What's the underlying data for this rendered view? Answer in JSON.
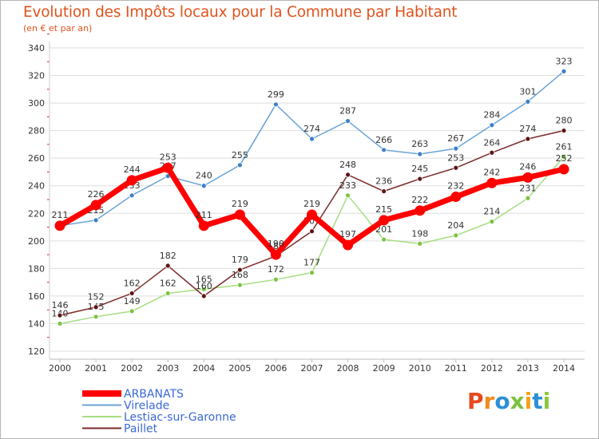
{
  "title": "Evolution des Impôts locaux pour la Commune par Habitant",
  "subtitle": "(en € et par an)",
  "logo": {
    "text": "Proxiti",
    "letters": [
      "P",
      "r",
      "o",
      "x",
      "i",
      "t",
      "i"
    ],
    "colors": [
      "#e8481c",
      "#f08b1d",
      "#2a8fd6",
      "#7cc242",
      "#f5a21c",
      "#2a8fd6",
      "#8dc63f"
    ]
  },
  "chart_data": {
    "type": "line",
    "categories": [
      "2000",
      "2001",
      "2002",
      "2003",
      "2004",
      "2005",
      "2006",
      "2007",
      "2008",
      "2009",
      "2010",
      "2011",
      "2012",
      "2013",
      "2014"
    ],
    "ylim": [
      120,
      340
    ],
    "yticks": [
      120,
      140,
      160,
      180,
      200,
      220,
      240,
      260,
      280,
      300,
      320,
      340
    ],
    "xlabel": "",
    "ylabel": "",
    "series": [
      {
        "name": "Virelade",
        "color": "#6aa3d6",
        "marker": "#3c7fc8",
        "values": [
          211,
          215,
          233,
          247,
          240,
          255,
          299,
          274,
          287,
          266,
          263,
          267,
          284,
          301,
          323
        ],
        "labels": [
          "",
          "215",
          "233",
          "247",
          "240",
          "255",
          "299",
          "274",
          "287",
          "266",
          "263",
          "267",
          "284",
          "301",
          "323"
        ]
      },
      {
        "name": "Lestiac-sur-Garonne",
        "color": "#a6dd80",
        "marker": "#7cc242",
        "values": [
          140,
          145,
          149,
          162,
          165,
          168,
          172,
          177,
          233,
          201,
          198,
          204,
          214,
          231,
          261
        ],
        "labels": [
          "140",
          "145",
          "149",
          "162",
          "165",
          "168",
          "172",
          "177",
          "233",
          "201",
          "198",
          "204",
          "214",
          "231",
          "261"
        ]
      },
      {
        "name": "Paillet",
        "color": "#7a2a2a",
        "marker": "#5e1414",
        "values": [
          146,
          152,
          162,
          182,
          160,
          179,
          189,
          207,
          248,
          236,
          245,
          253,
          264,
          274,
          280
        ],
        "labels": [
          "146",
          "152",
          "162",
          "182",
          "160",
          "179",
          "189",
          "207",
          "248",
          "236",
          "245",
          "253",
          "264",
          "274",
          "280"
        ]
      },
      {
        "name": "ARBANATS",
        "color": "#ff0000",
        "marker": "#ff0000",
        "values": [
          211,
          226,
          244,
          253,
          211,
          219,
          190,
          219,
          197,
          215,
          222,
          232,
          242,
          246,
          252
        ],
        "labels": [
          "211",
          "226",
          "244",
          "253",
          "211",
          "219",
          "190",
          "219",
          "197",
          "215",
          "222",
          "232",
          "242",
          "246",
          "252"
        ]
      }
    ],
    "legend": [
      "ARBANATS",
      "Virelade",
      "Lestiac-sur-Garonne",
      "Paillet"
    ]
  }
}
